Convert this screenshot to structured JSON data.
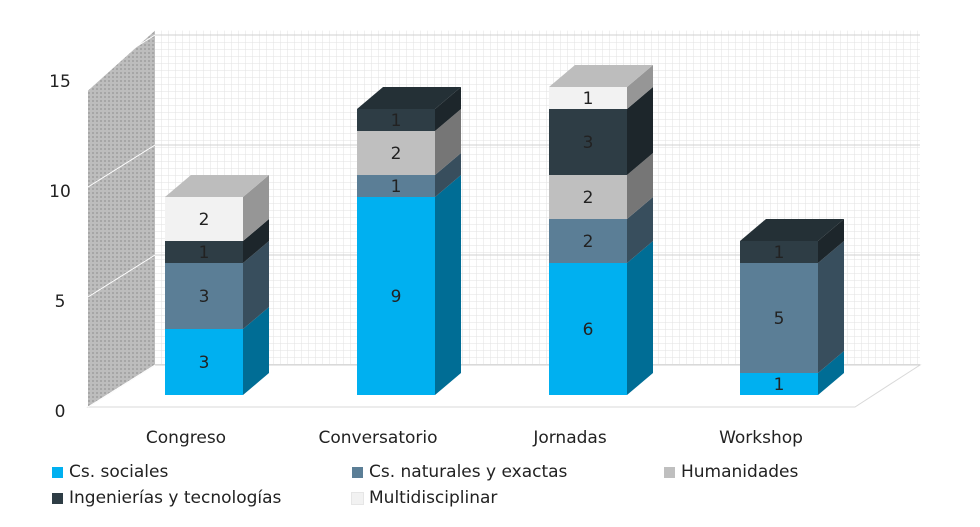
{
  "chart_data": {
    "type": "bar",
    "stacked": true,
    "three_d": true,
    "categories": [
      "Congreso",
      "Conversatorio",
      "Jornadas",
      "Workshop"
    ],
    "series": [
      {
        "name": "Cs. sociales",
        "color": "#00B0F0",
        "values": [
          3,
          9,
          6,
          1
        ]
      },
      {
        "name": "Cs. naturales y exactas",
        "color": "#5B7E96",
        "values": [
          3,
          1,
          2,
          5
        ]
      },
      {
        "name": "Humanidades",
        "color": "#BFBFBF",
        "values": [
          0,
          2,
          2,
          0
        ]
      },
      {
        "name": "Ingenierías y tecnologías",
        "color": "#2E3D45",
        "values": [
          1,
          1,
          3,
          1
        ]
      },
      {
        "name": "Multidisciplinar",
        "color": "#F2F2F2",
        "values": [
          2,
          0,
          1,
          0
        ]
      }
    ],
    "y_ticks": [
      "0",
      "5",
      "10",
      "15"
    ],
    "ylim": [
      0,
      15
    ],
    "grid": true,
    "legend_position": "bottom"
  }
}
